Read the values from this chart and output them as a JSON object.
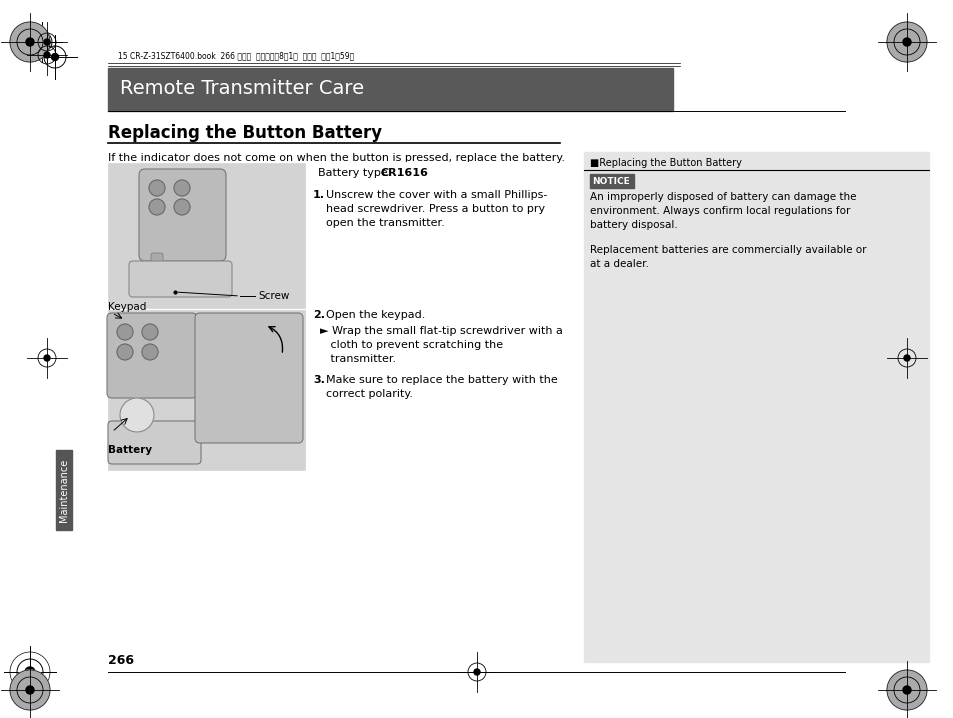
{
  "bg_color": "#ffffff",
  "header_bg": "#595959",
  "header_text": "Remote Transmitter Care",
  "header_text_color": "#ffffff",
  "section_title": "Replacing the Button Battery",
  "intro_text": "If the indicator does not come on when the button is pressed, replace the battery.",
  "battery_type_label": "Battery type: ",
  "battery_type_value": "CR1616",
  "step1_num": "1.",
  "step1_text": "Unscrew the cover with a small Phillips-\nhead screwdriver. Press a button to pry\nopen the transmitter.",
  "step2_num": "2.",
  "step2_text": "Open the keypad.",
  "step2_sub": "► Wrap the small flat-tip screwdriver with a\n   cloth to prevent scratching the\n   transmitter.",
  "step3_num": "3.",
  "step3_text": "Make sure to replace the battery with the\ncorrect polarity.",
  "screw_label": "Screw",
  "keypad_label": "Keypad",
  "battery_label": "Battery",
  "right_header": "■Replacing the Button Battery",
  "notice_label": "NOTICE",
  "notice_bg": "#555555",
  "notice_text1": "An improperly disposed of battery can damage the\nenvironment. Always confirm local regulations for\nbattery disposal.",
  "notice_text2": "Replacement batteries are commercially available or\nat a dealer.",
  "right_panel_bg": "#e5e5e5",
  "maintenance_text": "Maintenance",
  "page_num": "266",
  "top_info": "15 CR-Z-31SZT6400.book  266 ページ  ２０１４年8月1日  金曜日  午後1時59分",
  "img_bg": "#d3d3d3",
  "img_bg2": "#c8c8c8"
}
